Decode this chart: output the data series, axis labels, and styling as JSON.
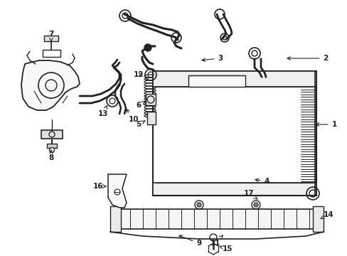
{
  "background_color": "#ffffff",
  "line_color": "#222222",
  "fig_width": 4.89,
  "fig_height": 3.6,
  "dpi": 100,
  "xlim": [
    0,
    489
  ],
  "ylim": [
    0,
    360
  ]
}
